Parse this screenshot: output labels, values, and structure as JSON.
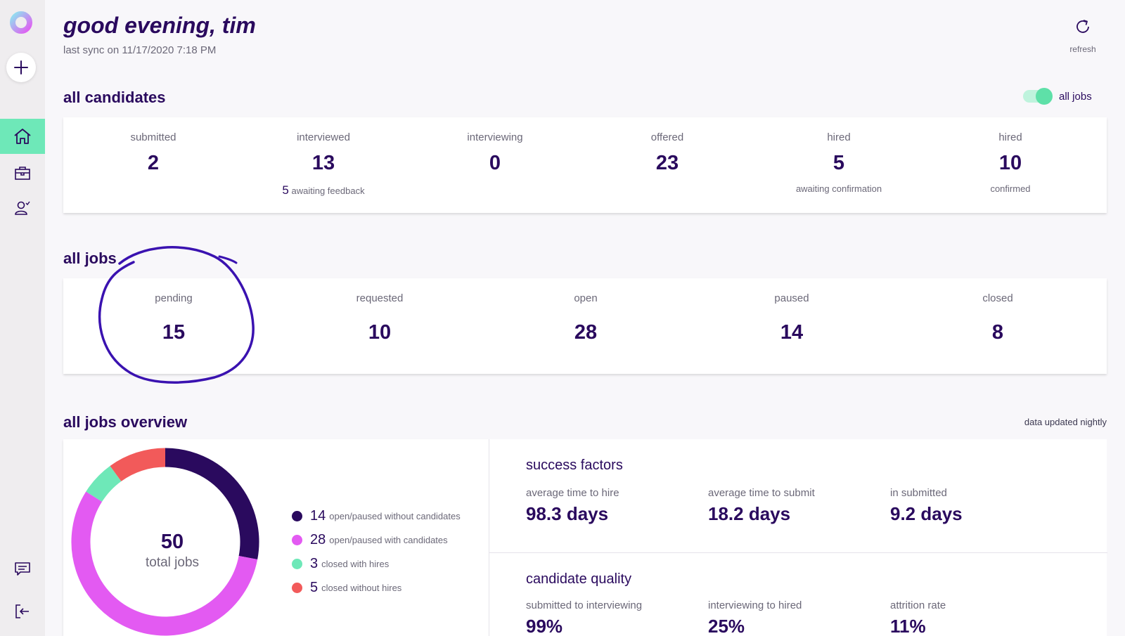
{
  "header": {
    "greeting": "good evening, tim",
    "last_sync": "last sync on 11/17/2020 7:18 PM",
    "refresh_label": "refresh"
  },
  "colors": {
    "primary": "#2a0a5e",
    "accent_green": "#6ee8b8",
    "magenta": "#e35af2",
    "red": "#f25a5a"
  },
  "sidebar": {
    "items": [
      {
        "icon": "home-icon",
        "active": true
      },
      {
        "icon": "briefcase-icon",
        "active": false
      },
      {
        "icon": "candidate-icon",
        "active": false
      }
    ],
    "bottom": [
      {
        "icon": "chat-icon"
      },
      {
        "icon": "logout-icon"
      }
    ]
  },
  "candidates": {
    "title": "all candidates",
    "toggle_label": "all jobs",
    "stats": [
      {
        "label": "submitted",
        "value": "2",
        "sub_num": "",
        "sub_text": ""
      },
      {
        "label": "interviewed",
        "value": "13",
        "sub_num": "5",
        "sub_text": "awaiting feedback"
      },
      {
        "label": "interviewing",
        "value": "0",
        "sub_num": "",
        "sub_text": ""
      },
      {
        "label": "offered",
        "value": "23",
        "sub_num": "",
        "sub_text": ""
      },
      {
        "label": "hired",
        "value": "5",
        "sub_num": "",
        "sub_text": "awaiting confirmation"
      },
      {
        "label": "hired",
        "value": "10",
        "sub_num": "",
        "sub_text": "confirmed"
      }
    ]
  },
  "jobs": {
    "title": "all jobs",
    "stats": [
      {
        "label": "pending",
        "value": "15"
      },
      {
        "label": "requested",
        "value": "10"
      },
      {
        "label": "open",
        "value": "28"
      },
      {
        "label": "paused",
        "value": "14"
      },
      {
        "label": "closed",
        "value": "8"
      }
    ]
  },
  "overview": {
    "title": "all jobs overview",
    "updated": "data updated nightly",
    "donut": {
      "total": "50",
      "total_label": "total jobs",
      "segments": [
        {
          "num": "14",
          "label": "open/paused without candidates",
          "color": "#2a0a5e"
        },
        {
          "num": "28",
          "label": "open/paused with candidates",
          "color": "#e35af2"
        },
        {
          "num": "3",
          "label": "closed with hires",
          "color": "#6ee8b8"
        },
        {
          "num": "5",
          "label": "closed without hires",
          "color": "#f25a5a"
        }
      ]
    },
    "success": {
      "title": "success factors",
      "metrics": [
        {
          "label": "average time to hire",
          "value": "98.3 days"
        },
        {
          "label": "average time to submit",
          "value": "18.2 days"
        },
        {
          "label": "in submitted",
          "value": "9.2 days"
        }
      ]
    },
    "quality": {
      "title": "candidate quality",
      "metrics": [
        {
          "label": "submitted to interviewing",
          "value": "99%"
        },
        {
          "label": "interviewing to hired",
          "value": "25%"
        },
        {
          "label": "attrition rate",
          "value": "11%"
        }
      ]
    }
  }
}
